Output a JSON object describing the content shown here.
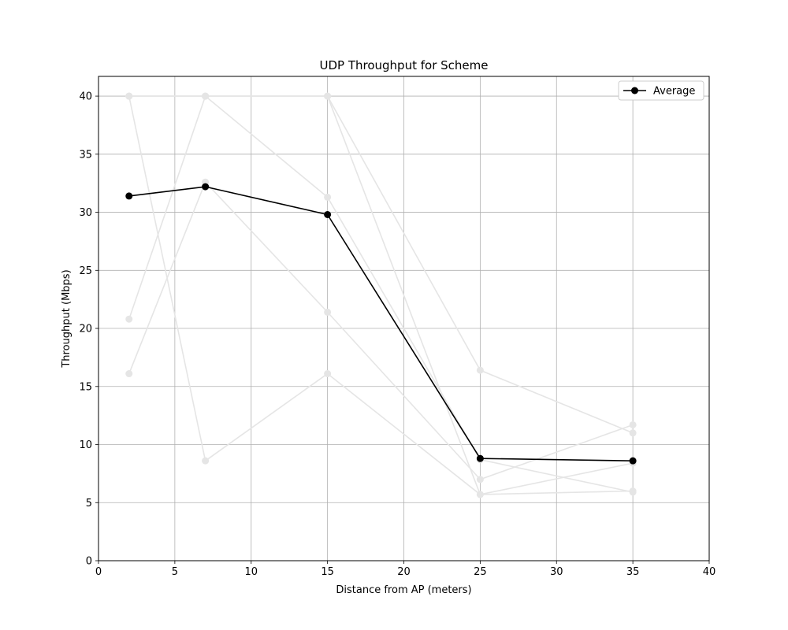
{
  "chart_data": {
    "type": "line",
    "title": "UDP Throughput for Scheme",
    "xlabel": "Distance from AP (meters)",
    "ylabel": "Throughput (Mbps)",
    "xlim": [
      0,
      40
    ],
    "ylim": [
      0,
      41.7
    ],
    "xticks": [
      0,
      5,
      10,
      15,
      20,
      25,
      30,
      35,
      40
    ],
    "yticks": [
      0,
      5,
      10,
      15,
      20,
      25,
      30,
      35,
      40
    ],
    "grid": true,
    "legend_position": "top-right",
    "x": [
      2,
      7,
      15,
      25,
      35
    ],
    "series": [
      {
        "name": "",
        "role": "background",
        "color": "#e5e5e5",
        "values": [
          40,
          8.6,
          16.1,
          5.7,
          6.0
        ]
      },
      {
        "name": "",
        "role": "background",
        "color": "#e5e5e5",
        "values": [
          40,
          40,
          40,
          5.7,
          8.4
        ]
      },
      {
        "name": "",
        "role": "background",
        "color": "#e5e5e5",
        "values": [
          20.8,
          40,
          40,
          16.4,
          11.0
        ]
      },
      {
        "name": "",
        "role": "background",
        "color": "#e5e5e5",
        "values": [
          16.1,
          32.6,
          21.4,
          7.0,
          11.7
        ]
      },
      {
        "name": "",
        "role": "background",
        "color": "#e5e5e5",
        "values": [
          40,
          40,
          31.3,
          8.7,
          5.9
        ]
      },
      {
        "name": "Average",
        "role": "average",
        "color": "#000000",
        "values": [
          31.4,
          32.2,
          29.8,
          8.8,
          8.6
        ]
      }
    ]
  }
}
